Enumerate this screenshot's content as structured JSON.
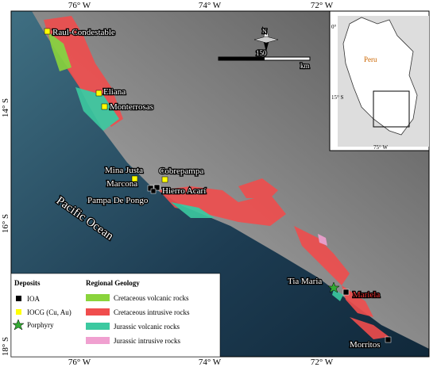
{
  "frame": {
    "top": [
      "76° W",
      "74° W",
      "72° W"
    ],
    "bottom": [
      "76° W",
      "74° W",
      "72° W"
    ],
    "left": [
      "14° S",
      "16° S",
      "18° S"
    ]
  },
  "map": {
    "ocean": "Pacific Ocean",
    "north": "N",
    "scale_value": "150",
    "scale_unit": "km"
  },
  "deposits": [
    {
      "label": "Raul-Condestable",
      "type": "IOCG (Cu, Au)"
    },
    {
      "label": "Eliana",
      "type": "IOCG (Cu, Au)"
    },
    {
      "label": "Monterrosas",
      "type": "IOCG (Cu, Au)"
    },
    {
      "label": "Mina Justa",
      "type": "IOCG (Cu, Au)"
    },
    {
      "label": "Cobrepampa",
      "type": "IOCG (Cu, Au)"
    },
    {
      "label": "Marcona",
      "type": "IOA"
    },
    {
      "label": "Hierro Acarí",
      "type": "IOA"
    },
    {
      "label": "Pampa De Pongo",
      "type": "IOA"
    },
    {
      "label": "Tia Maria",
      "type": "Porphyry"
    },
    {
      "label": "Mariela",
      "type": "IOA"
    },
    {
      "label": "Morritos",
      "type": "IOA"
    }
  ],
  "inset": {
    "country": "Peru",
    "lat_top": "0°",
    "lat_mid": "15° S",
    "lon": "75° W"
  },
  "legend": {
    "deposits_title": "Deposits",
    "deposits": [
      "IOA",
      "IOCG (Cu, Au)",
      "Porphyry"
    ],
    "geology_title": "Regional Geology",
    "geology": [
      "Cretaceous volcanic rocks",
      "Cretaceous intrusive rocks",
      "Jurassic volcanic rocks",
      "Jurassic intrusive rocks"
    ]
  }
}
